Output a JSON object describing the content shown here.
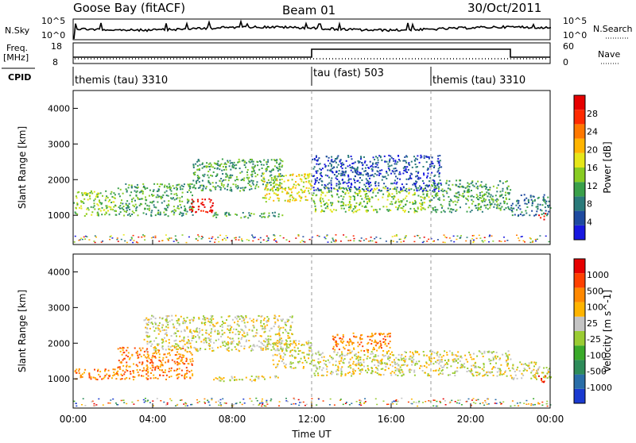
{
  "header": {
    "station": "Goose Bay (fitACF)",
    "beam": "Beam 01",
    "date": "30/Oct/2011"
  },
  "panels": {
    "nsky": {
      "label": "N.Sky",
      "ticks": [
        "10^5",
        "10^0"
      ],
      "right_label": "N.Search",
      "right_ticks": [
        "10^5",
        "10^0"
      ]
    },
    "freq": {
      "label_line1": "Freq.",
      "label_line2": "[MHz]",
      "ticks": [
        "18",
        "8"
      ],
      "right_label": "Nave",
      "right_ticks": [
        "60",
        "0"
      ]
    },
    "cpid": {
      "label": "CPID",
      "segments": [
        {
          "text": "themis (tau) 3310",
          "start_hour": 0
        },
        {
          "text": "tau (fast) 503",
          "start_hour": 12
        },
        {
          "text": "themis (tau) 3310",
          "start_hour": 18
        }
      ]
    }
  },
  "chart_data": [
    {
      "type": "heatmap",
      "title": "",
      "ylabel": "Slant Range [km]",
      "ylim": [
        180,
        4500
      ],
      "yticks": [
        1000,
        2000,
        3000,
        4000
      ],
      "xlim": [
        0,
        24
      ],
      "xticks": [
        "00:00",
        "04:00",
        "08:00",
        "12:00",
        "16:00",
        "20:00",
        "00:00"
      ],
      "colorbar": {
        "label": "Power [dB]",
        "ticks": [
          "4",
          "8",
          "12",
          "16",
          "20",
          "24",
          "28"
        ],
        "colors": [
          "#1818e0",
          "#1e4aa0",
          "#2a7a7a",
          "#3aa04a",
          "#88cc22",
          "#e6e619",
          "#ffb400",
          "#ff7800",
          "#ff2a00",
          "#e60000"
        ]
      },
      "echo_regions": [
        {
          "t0": 0.0,
          "t1": 2.2,
          "r0": 1000,
          "r1": 1700,
          "level": 4
        },
        {
          "t0": 2.2,
          "t1": 6.0,
          "r0": 1000,
          "r1": 1900,
          "level": 3
        },
        {
          "t0": 5.8,
          "t1": 7.0,
          "r0": 1100,
          "r1": 1500,
          "level": 9
        },
        {
          "t0": 6.0,
          "t1": 10.5,
          "r0": 1700,
          "r1": 2600,
          "level": 3
        },
        {
          "t0": 7.0,
          "t1": 10.5,
          "r0": 950,
          "r1": 1100,
          "level": 3
        },
        {
          "t0": 9.5,
          "t1": 12.0,
          "r0": 1400,
          "r1": 2200,
          "level": 5
        },
        {
          "t0": 12.0,
          "t1": 18.0,
          "r0": 1100,
          "r1": 1800,
          "level": 4
        },
        {
          "t0": 12.0,
          "t1": 18.5,
          "r0": 1700,
          "r1": 2700,
          "level": 1
        },
        {
          "t0": 18.0,
          "t1": 22.0,
          "r0": 1100,
          "r1": 2000,
          "level": 3
        },
        {
          "t0": 22.0,
          "t1": 24.0,
          "r0": 1000,
          "r1": 1600,
          "level": 2
        },
        {
          "t0": 23.3,
          "t1": 23.8,
          "r0": 900,
          "r1": 1100,
          "level": 9
        }
      ]
    },
    {
      "type": "heatmap",
      "title": "",
      "ylabel": "Slant Range [km]",
      "ylim": [
        180,
        4500
      ],
      "yticks": [
        1000,
        2000,
        3000,
        4000
      ],
      "xlim": [
        0,
        24
      ],
      "xticks": [
        "00:00",
        "04:00",
        "08:00",
        "12:00",
        "16:00",
        "20:00",
        "00:00"
      ],
      "xlabel": "Time UT",
      "colorbar": {
        "label": "Velocity [m s^-1]",
        "ticks": [
          "1000",
          "500",
          "100",
          "25",
          "-25",
          "-100",
          "-500",
          "-1000"
        ],
        "colors": [
          "#1a3ad0",
          "#2a6ea8",
          "#2e8c5a",
          "#3aaa2a",
          "#9acc33",
          "#c4c4c4",
          "#ffb400",
          "#ff8800",
          "#ff4000",
          "#e60000"
        ]
      },
      "echo_regions": [
        {
          "t0": 0.0,
          "t1": 2.2,
          "r0": 1000,
          "r1": 1300,
          "level": 7
        },
        {
          "t0": 2.2,
          "t1": 6.0,
          "r0": 1000,
          "r1": 1900,
          "level": 7
        },
        {
          "t0": 3.5,
          "t1": 11.0,
          "r0": 1800,
          "r1": 2800,
          "level": 5
        },
        {
          "t0": 7.0,
          "t1": 10.5,
          "r0": 950,
          "r1": 1100,
          "level": 5
        },
        {
          "t0": 10.0,
          "t1": 12.0,
          "r0": 1300,
          "r1": 2100,
          "level": 5
        },
        {
          "t0": 12.0,
          "t1": 22.0,
          "r0": 1100,
          "r1": 1800,
          "level": 5
        },
        {
          "t0": 13.0,
          "t1": 16.0,
          "r0": 1800,
          "r1": 2300,
          "level": 7
        },
        {
          "t0": 22.0,
          "t1": 24.0,
          "r0": 1000,
          "r1": 1500,
          "level": 5
        },
        {
          "t0": 23.3,
          "t1": 23.8,
          "r0": 900,
          "r1": 1100,
          "level": 9
        }
      ]
    }
  ]
}
